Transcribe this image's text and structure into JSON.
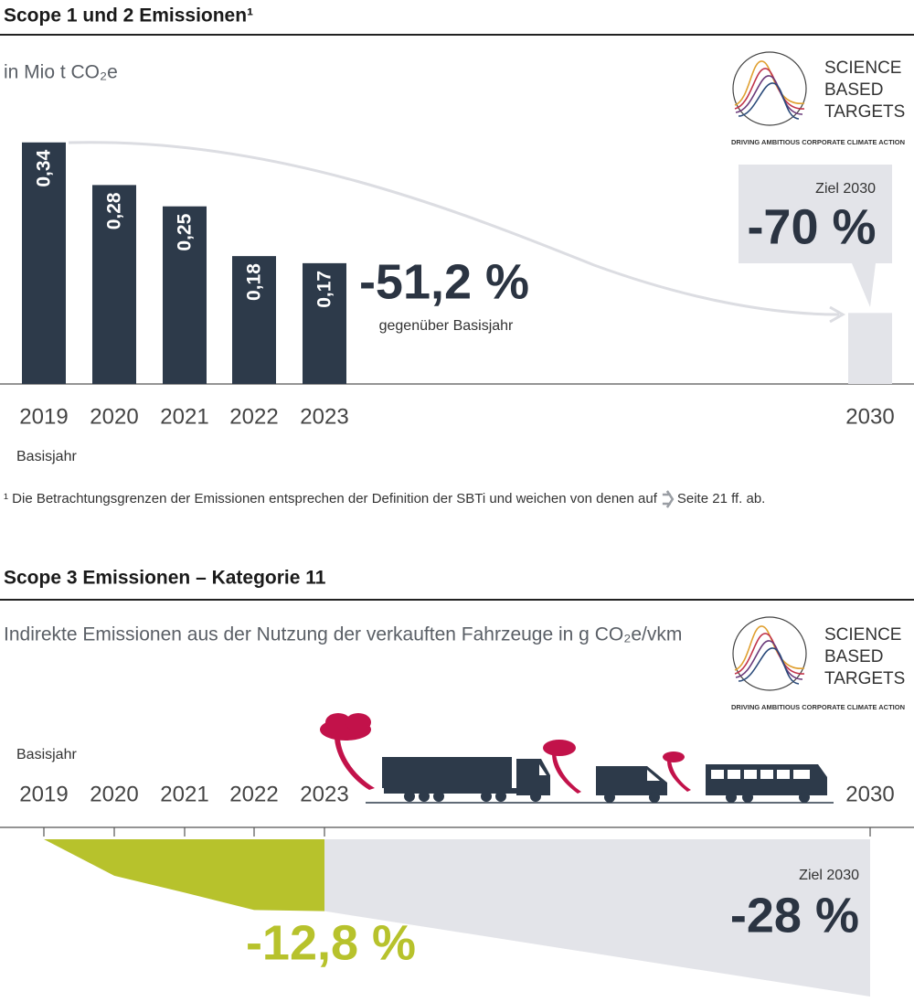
{
  "logo": {
    "lines": [
      "SCIENCE",
      "BASED",
      "TARGETS"
    ],
    "tagline": "DRIVING AMBITIOUS CORPORATE CLIMATE ACTION"
  },
  "chart_data": [
    {
      "type": "bar",
      "title": "Scope 1 und 2 Emissionen¹",
      "subtitle": "in Mio t CO₂e",
      "categories": [
        "2019",
        "2020",
        "2021",
        "2022",
        "2023",
        "2030"
      ],
      "values": [
        0.34,
        0.28,
        0.25,
        0.18,
        0.17,
        0.1
      ],
      "value_labels": [
        "0,34",
        "0,28",
        "0,25",
        "0,18",
        "0,17",
        null
      ],
      "colors": [
        "#2d3a4a",
        "#2d3a4a",
        "#2d3a4a",
        "#2d3a4a",
        "#2d3a4a",
        "#e3e4e9"
      ],
      "ylim": [
        0,
        0.35
      ],
      "annotations": {
        "change": "-51,2 %",
        "change_note": "gegenüber Basisjahr",
        "target_label": "Ziel 2030",
        "target": "-70 %",
        "base_year": "Basisjahr"
      },
      "footnote": {
        "text": "¹ Die Betrachtungsgrenzen der Emissionen entsprechen der Definition der SBTi und weichen von denen auf",
        "reference": "Seite 21 ff. ab."
      }
    },
    {
      "type": "area",
      "title": "Scope 3 Emissionen – Kategorie 11",
      "subtitle": "Indirekte Emissionen aus der Nutzung der verkauften Fahrzeuge in g CO₂e/vkm",
      "categories": [
        "2019",
        "2020",
        "2021",
        "2022",
        "2023",
        "2030"
      ],
      "series": [
        {
          "color": "#b7c22c",
          "values": [
            0,
            -6.5,
            -9.5,
            -12.6,
            -12.8,
            null
          ]
        },
        {
          "color": "#e3e4e9",
          "values": [
            null,
            null,
            null,
            null,
            -12.8,
            -28
          ]
        }
      ],
      "ylim": [
        -28,
        0
      ],
      "annotations": {
        "base_year": "Basisjahr",
        "change": "-12,8 %",
        "target_label": "Ziel 2030",
        "target": "-28 %"
      }
    }
  ]
}
